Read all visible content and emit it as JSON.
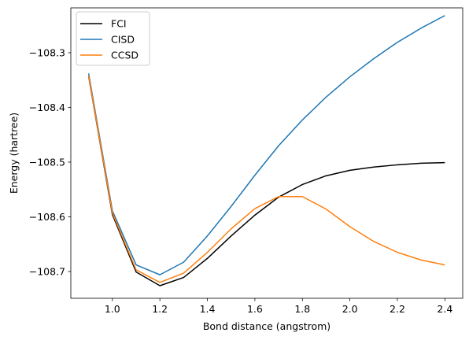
{
  "chart_data": {
    "type": "line",
    "title": "",
    "xlabel": "Bond distance (angstrom)",
    "ylabel": "Energy (hartree)",
    "xlim": [
      0.825,
      2.475
    ],
    "ylim": [
      -108.749,
      -108.218
    ],
    "grid": false,
    "legend_position": "top-left",
    "x": [
      0.9,
      1.0,
      1.1,
      1.2,
      1.3,
      1.4,
      1.5,
      1.6,
      1.7,
      1.8,
      1.9,
      2.0,
      2.1,
      2.2,
      2.3,
      2.4
    ],
    "series": [
      {
        "name": "FCI",
        "color": "#000000",
        "values": [
          -108.343,
          -108.596,
          -108.701,
          -108.726,
          -108.711,
          -108.676,
          -108.635,
          -108.597,
          -108.564,
          -108.541,
          -108.525,
          -108.515,
          -108.509,
          -108.505,
          -108.502,
          -108.501
        ]
      },
      {
        "name": "CISD",
        "color": "#1f77b4",
        "values": [
          -108.338,
          -108.589,
          -108.688,
          -108.706,
          -108.683,
          -108.635,
          -108.581,
          -108.524,
          -108.47,
          -108.423,
          -108.381,
          -108.344,
          -108.311,
          -108.281,
          -108.255,
          -108.232
        ]
      },
      {
        "name": "CCSD",
        "color": "#ff7f0e",
        "values": [
          -108.342,
          -108.593,
          -108.697,
          -108.72,
          -108.703,
          -108.665,
          -108.622,
          -108.585,
          -108.563,
          -108.563,
          -108.586,
          -108.618,
          -108.645,
          -108.665,
          -108.679,
          -108.688
        ]
      }
    ],
    "xticks": [
      1.0,
      1.2,
      1.4,
      1.6,
      1.8,
      2.0,
      2.2,
      2.4
    ],
    "xtick_labels": [
      "1.0",
      "1.2",
      "1.4",
      "1.6",
      "1.8",
      "2.0",
      "2.2",
      "2.4"
    ],
    "yticks": [
      -108.7,
      -108.6,
      -108.5,
      -108.4,
      -108.3
    ],
    "ytick_labels": [
      "−108.7",
      "−108.6",
      "−108.5",
      "−108.4",
      "−108.3"
    ]
  }
}
